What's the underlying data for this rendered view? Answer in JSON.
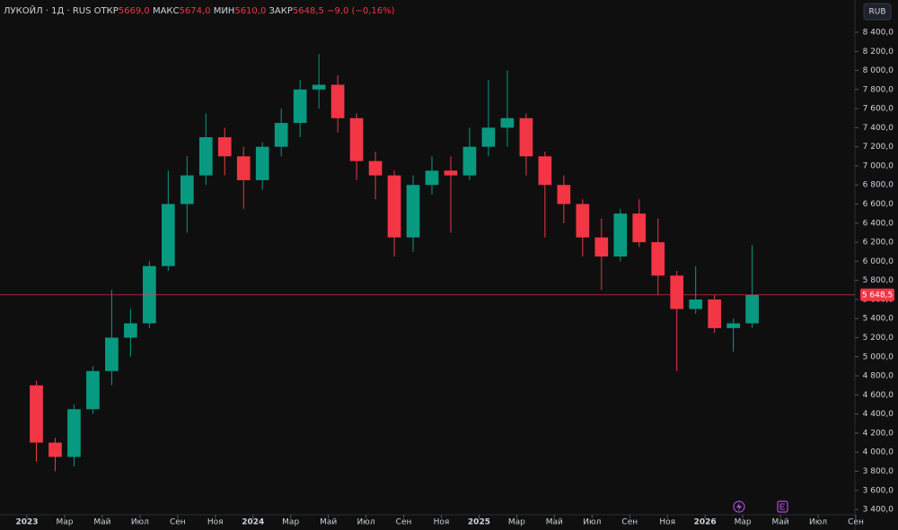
{
  "chart_data": {
    "type": "candlestick",
    "title": "ЛУКОЙЛ · 1Д · RUS",
    "ohlc_header": [
      {
        "label": "ОТКР",
        "value": "5669,0"
      },
      {
        "label": "МАКС",
        "value": "5674,0"
      },
      {
        "label": "МИН",
        "value": "5610,0"
      },
      {
        "label": "ЗАКР",
        "value": "5648,5"
      }
    ],
    "change": "−9,0 (−0,16%)",
    "currency": "RUB",
    "up_color": "#089981",
    "down_color": "#f23645",
    "x": [
      "2023-01",
      "2023-02",
      "2023-03",
      "2023-04",
      "2023-05",
      "2023-06",
      "2023-07",
      "2023-08",
      "2023-09",
      "2023-10",
      "2023-11",
      "2023-12",
      "2024-01",
      "2024-02",
      "2024-03",
      "2024-04",
      "2024-05",
      "2024-06",
      "2024-07",
      "2024-08",
      "2024-09",
      "2024-10",
      "2024-11",
      "2024-12",
      "2025-01",
      "2025-02",
      "2025-03",
      "2025-04",
      "2025-05",
      "2025-06",
      "2025-07",
      "2025-08",
      "2025-09",
      "2025-10",
      "2025-11",
      "2025-12",
      "2026-01",
      "2026-02",
      "2026-03"
    ],
    "open": [
      4700,
      4100,
      3950,
      4450,
      4850,
      5200,
      5350,
      5950,
      6600,
      6900,
      7300,
      7100,
      6850,
      7200,
      7450,
      7800,
      7850,
      7500,
      7050,
      6900,
      6250,
      6800,
      6950,
      6900,
      7200,
      7400,
      7500,
      7100,
      6800,
      6600,
      6250,
      6050,
      6500,
      6200,
      5850,
      5500,
      5600,
      5300,
      5350
    ],
    "high": [
      4750,
      4150,
      4500,
      4900,
      5700,
      5500,
      6000,
      6950,
      7100,
      7550,
      7400,
      7200,
      7250,
      7600,
      7900,
      8170,
      7950,
      7550,
      7150,
      6950,
      6900,
      7100,
      7100,
      7400,
      7900,
      8000,
      7550,
      7150,
      6900,
      6650,
      6450,
      6550,
      6650,
      6450,
      5900,
      5950,
      5650,
      5400,
      6170
    ],
    "low": [
      3900,
      3800,
      3850,
      4400,
      4700,
      5000,
      5300,
      5900,
      6300,
      6800,
      6900,
      6550,
      6750,
      7100,
      7300,
      7600,
      7350,
      6850,
      6650,
      6050,
      6100,
      6700,
      6300,
      6850,
      7100,
      7200,
      6900,
      6250,
      6400,
      6050,
      5700,
      6000,
      6150,
      5650,
      4850,
      5450,
      5250,
      5050,
      5300
    ],
    "close": [
      4100,
      3950,
      4450,
      4850,
      5200,
      5350,
      5950,
      6600,
      6900,
      7300,
      7100,
      6850,
      7200,
      7450,
      7800,
      7850,
      7500,
      7050,
      6900,
      6250,
      6800,
      6950,
      6900,
      7200,
      7400,
      7500,
      7100,
      6800,
      6600,
      6250,
      6050,
      6500,
      6200,
      5850,
      5500,
      5600,
      5300,
      5350,
      5648.5
    ],
    "last_price": {
      "value": 5648.5,
      "label": "5 648,5"
    },
    "xlim": [
      "2023-01",
      "2026-09"
    ],
    "xticks": [
      {
        "value": "2023-01",
        "label": "2023"
      },
      {
        "value": "2023-03",
        "label": "Мар"
      },
      {
        "value": "2023-05",
        "label": "Май"
      },
      {
        "value": "2023-07",
        "label": "Июл"
      },
      {
        "value": "2023-09",
        "label": "Сен"
      },
      {
        "value": "2023-11",
        "label": "Ноя"
      },
      {
        "value": "2024-01",
        "label": "2024"
      },
      {
        "value": "2024-03",
        "label": "Мар"
      },
      {
        "value": "2024-05",
        "label": "Май"
      },
      {
        "value": "2024-07",
        "label": "Июл"
      },
      {
        "value": "2024-09",
        "label": "Сен"
      },
      {
        "value": "2024-11",
        "label": "Ноя"
      },
      {
        "value": "2025-01",
        "label": "2025"
      },
      {
        "value": "2025-03",
        "label": "Мар"
      },
      {
        "value": "2025-05",
        "label": "Май"
      },
      {
        "value": "2025-07",
        "label": "Июл"
      },
      {
        "value": "2025-09",
        "label": "Сен"
      },
      {
        "value": "2025-11",
        "label": "Ноя"
      },
      {
        "value": "2026-01",
        "label": "2026"
      },
      {
        "value": "2026-03",
        "label": "Мар"
      },
      {
        "value": "2026-05",
        "label": "Май"
      },
      {
        "value": "2026-07",
        "label": "Июл"
      },
      {
        "value": "2026-09",
        "label": "Сен"
      }
    ],
    "ylim": [
      3344,
      8738
    ],
    "yticks": [
      {
        "value": 3400,
        "label": "3 400,0"
      },
      {
        "value": 3600,
        "label": "3 600,0"
      },
      {
        "value": 3800,
        "label": "3 800,0"
      },
      {
        "value": 4000,
        "label": "4 000,0"
      },
      {
        "value": 4200,
        "label": "4 200,0"
      },
      {
        "value": 4400,
        "label": "4 400,0"
      },
      {
        "value": 4600,
        "label": "4 600,0"
      },
      {
        "value": 4800,
        "label": "4 800,0"
      },
      {
        "value": 5000,
        "label": "5 000,0"
      },
      {
        "value": 5200,
        "label": "5 200,0"
      },
      {
        "value": 5400,
        "label": "5 400,0"
      },
      {
        "value": 5600,
        "label": "5 600,0"
      },
      {
        "value": 5800,
        "label": "5 800,0"
      },
      {
        "value": 6000,
        "label": "6 000,0"
      },
      {
        "value": 6200,
        "label": "6 200,0"
      },
      {
        "value": 6400,
        "label": "6 400,0"
      },
      {
        "value": 6600,
        "label": "6 600,0"
      },
      {
        "value": 6800,
        "label": "6 800,0"
      },
      {
        "value": 7000,
        "label": "7 000,0"
      },
      {
        "value": 7200,
        "label": "7 200,0"
      },
      {
        "value": 7400,
        "label": "7 400,0"
      },
      {
        "value": 7600,
        "label": "7 600,0"
      },
      {
        "value": 7800,
        "label": "7 800,0"
      },
      {
        "value": 8000,
        "label": "8 000,0"
      },
      {
        "value": 8200,
        "label": "8 200,0"
      },
      {
        "value": 8400,
        "label": "8 400,0"
      }
    ]
  }
}
